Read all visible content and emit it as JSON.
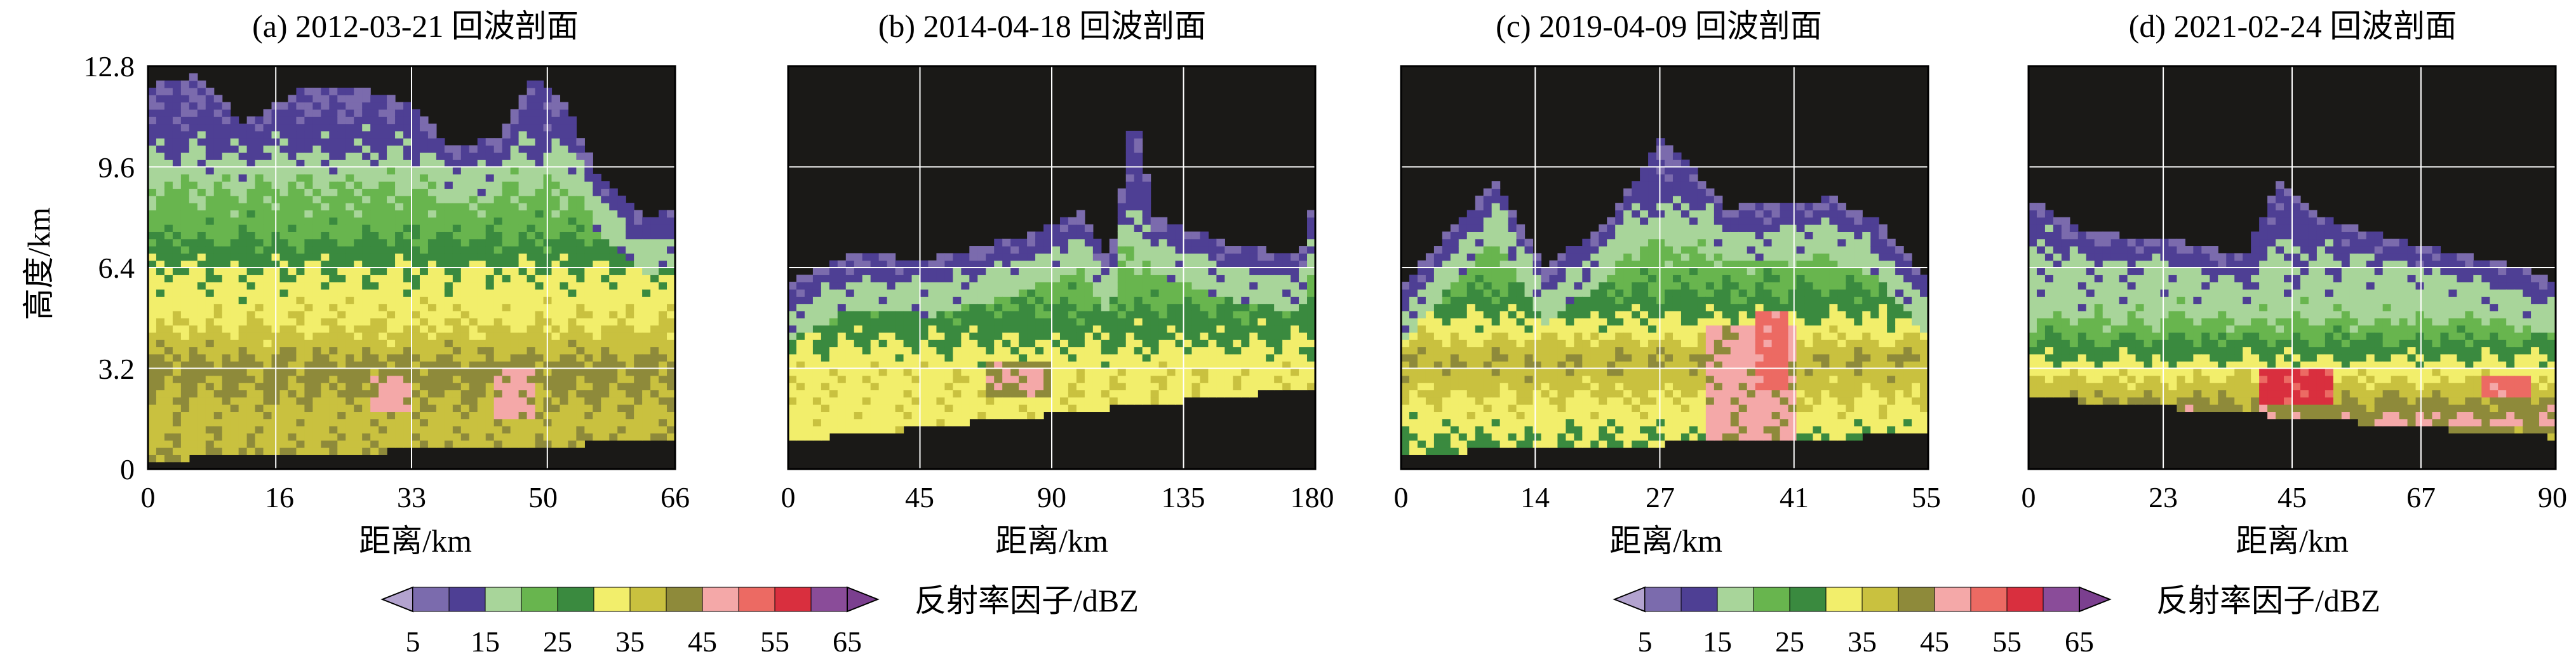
{
  "figure": {
    "background_color": "#1a1917",
    "grid_color": "#ffffff"
  },
  "panels": [
    {
      "title": "(a) 2012-03-21 回波剖面",
      "xticks": [
        "0",
        "16",
        "33",
        "50",
        "66"
      ]
    },
    {
      "title": "(b) 2014-04-18 回波剖面",
      "xticks": [
        "0",
        "45",
        "90",
        "135",
        "180"
      ]
    },
    {
      "title": "(c) 2019-04-09 回波剖面",
      "xticks": [
        "0",
        "14",
        "27",
        "41",
        "55"
      ]
    },
    {
      "title": "(d) 2021-02-24 回波剖面",
      "xticks": [
        "0",
        "23",
        "45",
        "67",
        "90"
      ]
    }
  ],
  "shared_axes": {
    "ylabel": "高度/km",
    "yticks": [
      "0",
      "3.2",
      "6.4",
      "9.6",
      "12.8"
    ],
    "xlabel": "距离/km"
  },
  "colorbars": [
    {
      "label": "反射率因子/dBZ",
      "ticks": [
        "5",
        "15",
        "25",
        "35",
        "45",
        "55",
        "65"
      ]
    },
    {
      "label": "反射率因子/dBZ",
      "ticks": [
        "5",
        "15",
        "25",
        "35",
        "45",
        "55",
        "65"
      ]
    }
  ],
  "colorscale": [
    {
      "range": [
        5,
        10
      ],
      "color": "#7b6bad"
    },
    {
      "range": [
        10,
        15
      ],
      "color": "#4e3f94"
    },
    {
      "range": [
        15,
        20
      ],
      "color": "#a8d59a"
    },
    {
      "range": [
        20,
        25
      ],
      "color": "#68b54e"
    },
    {
      "range": [
        25,
        30
      ],
      "color": "#3a8a3f"
    },
    {
      "range": [
        30,
        35
      ],
      "color": "#f2ee6b"
    },
    {
      "range": [
        35,
        40
      ],
      "color": "#c9c13f"
    },
    {
      "range": [
        40,
        45
      ],
      "color": "#8e8a3a"
    },
    {
      "range": [
        45,
        50
      ],
      "color": "#f4a8a8"
    },
    {
      "range": [
        50,
        55
      ],
      "color": "#ec6a63"
    },
    {
      "range": [
        55,
        60
      ],
      "color": "#d92f3e"
    },
    {
      "range": [
        60,
        65
      ],
      "color": "#8a4c99"
    }
  ],
  "chart_data": [
    {
      "type": "heatmap",
      "title": "(a) 2012-03-21 回波剖面",
      "xlabel": "距离/km",
      "ylabel": "高度/km",
      "xlim": [
        0,
        66
      ],
      "ylim": [
        0,
        12.8
      ],
      "x_ticks": [
        0,
        16,
        33,
        50,
        66
      ],
      "y_ticks": [
        0,
        3.2,
        6.4,
        9.6,
        12.8
      ],
      "grid": true,
      "value_unit": "dBZ",
      "bottom_km": [
        [
          0,
          0.3
        ],
        [
          66,
          0.9
        ]
      ],
      "top_km": [
        [
          0,
          12.2
        ],
        [
          6,
          12.5
        ],
        [
          12,
          11.0
        ],
        [
          19,
          12.0
        ],
        [
          26,
          12.2
        ],
        [
          33,
          11.6
        ],
        [
          38,
          10.2
        ],
        [
          44,
          10.6
        ],
        [
          48,
          12.4
        ],
        [
          52,
          11.8
        ],
        [
          56,
          9.5
        ],
        [
          62,
          8.0
        ],
        [
          66,
          8.2
        ]
      ],
      "profile_dbz": [
        [
          0.0,
          40
        ],
        [
          1.5,
          38
        ],
        [
          3.2,
          42
        ],
        [
          4.5,
          35
        ],
        [
          6.4,
          30
        ],
        [
          7.5,
          24
        ],
        [
          9.0,
          20
        ],
        [
          10.0,
          15
        ],
        [
          11.5,
          10
        ]
      ],
      "cores": [
        {
          "x": [
            28,
            33
          ],
          "y": [
            1.8,
            3.0
          ],
          "dbz": 46
        },
        {
          "x": [
            43,
            48
          ],
          "y": [
            1.7,
            3.3
          ],
          "dbz": 46
        }
      ]
    },
    {
      "type": "heatmap",
      "title": "(b) 2014-04-18 回波剖面",
      "xlabel": "距离/km",
      "ylabel": "高度/km",
      "xlim": [
        0,
        180
      ],
      "ylim": [
        0,
        12.8
      ],
      "x_ticks": [
        0,
        45,
        90,
        135,
        180
      ],
      "y_ticks": [
        0,
        3.2,
        6.4,
        9.6,
        12.8
      ],
      "grid": true,
      "value_unit": "dBZ",
      "bottom_km": [
        [
          12,
          1.0
        ],
        [
          180,
          2.6
        ]
      ],
      "top_km": [
        [
          3,
          6.0
        ],
        [
          20,
          6.8
        ],
        [
          50,
          6.7
        ],
        [
          80,
          7.4
        ],
        [
          100,
          8.2
        ],
        [
          110,
          6.6
        ],
        [
          118,
          11.5
        ],
        [
          125,
          8.0
        ],
        [
          150,
          7.2
        ],
        [
          175,
          6.8
        ],
        [
          180,
          8.8
        ]
      ],
      "profile_dbz": [
        [
          1.5,
          33
        ],
        [
          3.0,
          34
        ],
        [
          4.5,
          28
        ],
        [
          5.5,
          24
        ],
        [
          7.0,
          18
        ],
        [
          8.5,
          12
        ]
      ],
      "cores": [
        {
          "x": [
            68,
            90
          ],
          "y": [
            2.4,
            3.4
          ],
          "dbz": 43
        },
        {
          "x": [
            72,
            86
          ],
          "y": [
            2.6,
            3.1
          ],
          "dbz": 46
        }
      ]
    },
    {
      "type": "heatmap",
      "title": "(c) 2019-04-09 回波剖面",
      "xlabel": "距离/km",
      "ylabel": "高度/km",
      "xlim": [
        0,
        55
      ],
      "ylim": [
        0,
        12.8
      ],
      "x_ticks": [
        0,
        14,
        27,
        41,
        55
      ],
      "y_ticks": [
        0,
        3.2,
        6.4,
        9.6,
        12.8
      ],
      "grid": true,
      "value_unit": "dBZ",
      "bottom_km": [
        [
          0,
          0.5
        ],
        [
          55,
          1.1
        ]
      ],
      "top_km": [
        [
          0,
          5.8
        ],
        [
          4,
          7.2
        ],
        [
          10,
          9.2
        ],
        [
          15,
          6.4
        ],
        [
          22,
          8.0
        ],
        [
          27,
          10.5
        ],
        [
          30,
          9.7
        ],
        [
          34,
          8.3
        ],
        [
          45,
          8.6
        ],
        [
          50,
          7.8
        ],
        [
          55,
          6.0
        ]
      ],
      "profile_dbz": [
        [
          1.0,
          30
        ],
        [
          2.5,
          36
        ],
        [
          3.5,
          40
        ],
        [
          4.5,
          32
        ],
        [
          5.5,
          26
        ],
        [
          7.0,
          20
        ],
        [
          8.5,
          14
        ],
        [
          9.8,
          10
        ]
      ],
      "cores": [
        {
          "x": [
            32,
            41
          ],
          "y": [
            0.5,
            4.5
          ],
          "dbz": 46
        },
        {
          "x": [
            37,
            40
          ],
          "y": [
            2.5,
            5.0
          ],
          "dbz": 52
        }
      ]
    },
    {
      "type": "heatmap",
      "title": "(d) 2021-02-24 回波剖面",
      "xlabel": "距离/km",
      "ylabel": "高度/km",
      "xlim": [
        0,
        90
      ],
      "ylim": [
        0,
        12.8
      ],
      "x_ticks": [
        0,
        23,
        45,
        67,
        90
      ],
      "y_ticks": [
        0,
        3.2,
        6.4,
        9.6,
        12.8
      ],
      "grid": true,
      "value_unit": "dBZ",
      "bottom_km": [
        [
          0,
          2.3
        ],
        [
          90,
          1.0
        ]
      ],
      "top_km": [
        [
          0,
          8.6
        ],
        [
          10,
          7.5
        ],
        [
          24,
          7.3
        ],
        [
          37,
          6.8
        ],
        [
          43,
          9.2
        ],
        [
          50,
          8.0
        ],
        [
          65,
          7.2
        ],
        [
          80,
          6.6
        ],
        [
          90,
          6.0
        ]
      ],
      "profile_dbz": [
        [
          0.5,
          30
        ],
        [
          1.5,
          46
        ],
        [
          2.5,
          38
        ],
        [
          3.5,
          30
        ],
        [
          5.0,
          18
        ],
        [
          6.5,
          16
        ],
        [
          8.0,
          12
        ]
      ],
      "cores": [
        {
          "x": [
            40,
            52
          ],
          "y": [
            2.0,
            3.2
          ],
          "dbz": 56
        },
        {
          "x": [
            78,
            86
          ],
          "y": [
            2.2,
            3.0
          ],
          "dbz": 52
        }
      ]
    }
  ]
}
